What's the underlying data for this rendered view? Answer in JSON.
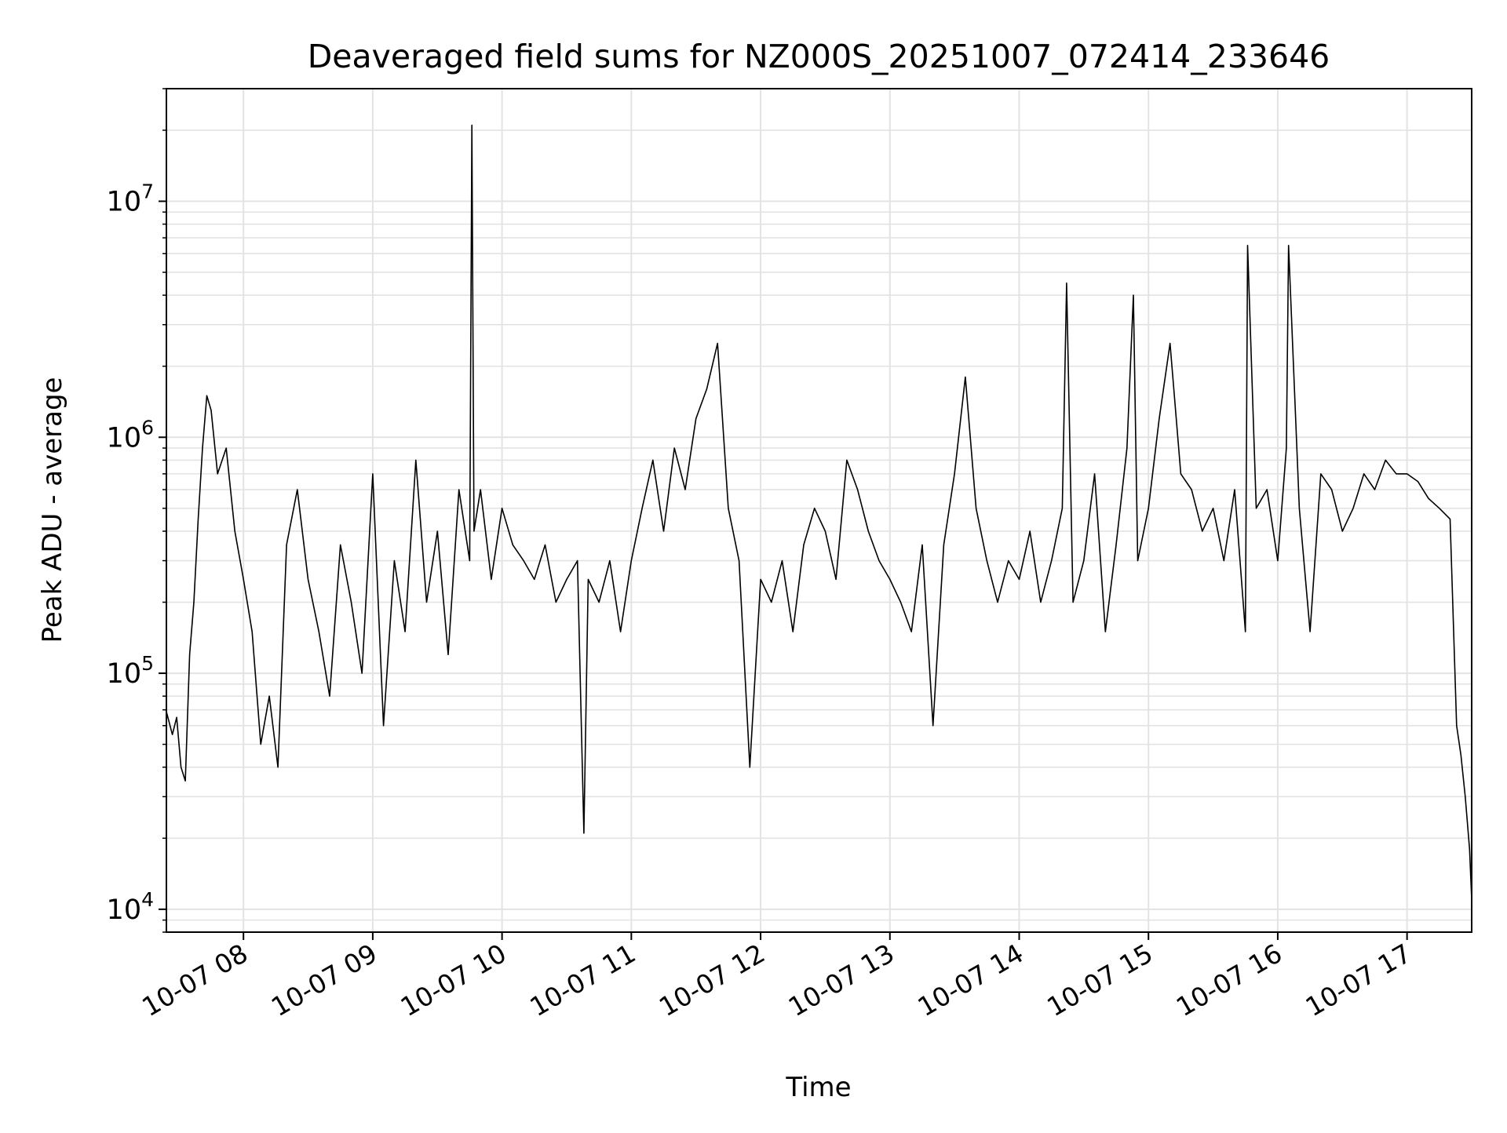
{
  "chart_data": {
    "type": "line",
    "title": "Deaveraged field sums for NZ000S_20251007_072414_233646",
    "xlabel": "Time",
    "ylabel": "Peak ADU - average",
    "yscale": "log",
    "ylim": [
      8000,
      30000000
    ],
    "xlim": [
      "2025-10-07 07:24:14",
      "2025-10-07 17:30:00"
    ],
    "grid": true,
    "legend": false,
    "line_color": "#000000",
    "x_ticks": [
      {
        "value": "2025-10-07 08:00",
        "label": "10-07 08"
      },
      {
        "value": "2025-10-07 09:00",
        "label": "10-07 09"
      },
      {
        "value": "2025-10-07 10:00",
        "label": "10-07 10"
      },
      {
        "value": "2025-10-07 11:00",
        "label": "10-07 11"
      },
      {
        "value": "2025-10-07 12:00",
        "label": "10-07 12"
      },
      {
        "value": "2025-10-07 13:00",
        "label": "10-07 13"
      },
      {
        "value": "2025-10-07 14:00",
        "label": "10-07 14"
      },
      {
        "value": "2025-10-07 15:00",
        "label": "10-07 15"
      },
      {
        "value": "2025-10-07 16:00",
        "label": "10-07 16"
      },
      {
        "value": "2025-10-07 17:00",
        "label": "10-07 17"
      }
    ],
    "y_ticks": [
      {
        "value": 10000,
        "base": "10",
        "exp": "4"
      },
      {
        "value": 100000,
        "base": "10",
        "exp": "5"
      },
      {
        "value": 1000000,
        "base": "10",
        "exp": "6"
      },
      {
        "value": 10000000,
        "base": "10",
        "exp": "7"
      }
    ],
    "series": [
      {
        "x": [
          "2025-10-07 07:24",
          "2025-10-07 07:27",
          "2025-10-07 07:29",
          "2025-10-07 07:31",
          "2025-10-07 07:33",
          "2025-10-07 07:35",
          "2025-10-07 07:37",
          "2025-10-07 07:39",
          "2025-10-07 07:41",
          "2025-10-07 07:43",
          "2025-10-07 07:45",
          "2025-10-07 07:48",
          "2025-10-07 07:52",
          "2025-10-07 07:56",
          "2025-10-07 08:00",
          "2025-10-07 08:04",
          "2025-10-07 08:08",
          "2025-10-07 08:12",
          "2025-10-07 08:16",
          "2025-10-07 08:20",
          "2025-10-07 08:25",
          "2025-10-07 08:30",
          "2025-10-07 08:35",
          "2025-10-07 08:40",
          "2025-10-07 08:45",
          "2025-10-07 08:50",
          "2025-10-07 08:55",
          "2025-10-07 09:00",
          "2025-10-07 09:05",
          "2025-10-07 09:10",
          "2025-10-07 09:15",
          "2025-10-07 09:20",
          "2025-10-07 09:25",
          "2025-10-07 09:30",
          "2025-10-07 09:35",
          "2025-10-07 09:40",
          "2025-10-07 09:45",
          "2025-10-07 09:46",
          "2025-10-07 09:47",
          "2025-10-07 09:50",
          "2025-10-07 09:55",
          "2025-10-07 10:00",
          "2025-10-07 10:05",
          "2025-10-07 10:10",
          "2025-10-07 10:15",
          "2025-10-07 10:20",
          "2025-10-07 10:25",
          "2025-10-07 10:30",
          "2025-10-07 10:35",
          "2025-10-07 10:38",
          "2025-10-07 10:40",
          "2025-10-07 10:45",
          "2025-10-07 10:50",
          "2025-10-07 10:55",
          "2025-10-07 11:00",
          "2025-10-07 11:05",
          "2025-10-07 11:10",
          "2025-10-07 11:15",
          "2025-10-07 11:20",
          "2025-10-07 11:25",
          "2025-10-07 11:30",
          "2025-10-07 11:35",
          "2025-10-07 11:40",
          "2025-10-07 11:45",
          "2025-10-07 11:50",
          "2025-10-07 11:55",
          "2025-10-07 12:00",
          "2025-10-07 12:05",
          "2025-10-07 12:10",
          "2025-10-07 12:15",
          "2025-10-07 12:20",
          "2025-10-07 12:25",
          "2025-10-07 12:30",
          "2025-10-07 12:35",
          "2025-10-07 12:40",
          "2025-10-07 12:45",
          "2025-10-07 12:50",
          "2025-10-07 12:55",
          "2025-10-07 13:00",
          "2025-10-07 13:05",
          "2025-10-07 13:10",
          "2025-10-07 13:15",
          "2025-10-07 13:20",
          "2025-10-07 13:25",
          "2025-10-07 13:30",
          "2025-10-07 13:35",
          "2025-10-07 13:40",
          "2025-10-07 13:45",
          "2025-10-07 13:50",
          "2025-10-07 13:55",
          "2025-10-07 14:00",
          "2025-10-07 14:05",
          "2025-10-07 14:10",
          "2025-10-07 14:15",
          "2025-10-07 14:20",
          "2025-10-07 14:22",
          "2025-10-07 14:25",
          "2025-10-07 14:30",
          "2025-10-07 14:35",
          "2025-10-07 14:40",
          "2025-10-07 14:45",
          "2025-10-07 14:50",
          "2025-10-07 14:53",
          "2025-10-07 14:55",
          "2025-10-07 15:00",
          "2025-10-07 15:05",
          "2025-10-07 15:10",
          "2025-10-07 15:15",
          "2025-10-07 15:20",
          "2025-10-07 15:25",
          "2025-10-07 15:30",
          "2025-10-07 15:35",
          "2025-10-07 15:40",
          "2025-10-07 15:45",
          "2025-10-07 15:46",
          "2025-10-07 15:50",
          "2025-10-07 15:55",
          "2025-10-07 16:00",
          "2025-10-07 16:04",
          "2025-10-07 16:05",
          "2025-10-07 16:10",
          "2025-10-07 16:15",
          "2025-10-07 16:20",
          "2025-10-07 16:25",
          "2025-10-07 16:30",
          "2025-10-07 16:35",
          "2025-10-07 16:40",
          "2025-10-07 16:45",
          "2025-10-07 16:50",
          "2025-10-07 16:55",
          "2025-10-07 17:00",
          "2025-10-07 17:05",
          "2025-10-07 17:10",
          "2025-10-07 17:15",
          "2025-10-07 17:20",
          "2025-10-07 17:23",
          "2025-10-07 17:25",
          "2025-10-07 17:27",
          "2025-10-07 17:29",
          "2025-10-07 17:30"
        ],
        "y": [
          70000,
          55000,
          65000,
          40000,
          35000,
          120000,
          200000,
          450000,
          900000,
          1500000,
          1300000,
          700000,
          900000,
          400000,
          250000,
          150000,
          50000,
          80000,
          40000,
          350000,
          600000,
          250000,
          150000,
          80000,
          350000,
          200000,
          100000,
          700000,
          60000,
          300000,
          150000,
          800000,
          200000,
          400000,
          120000,
          600000,
          300000,
          21000000,
          400000,
          600000,
          250000,
          500000,
          350000,
          300000,
          250000,
          350000,
          200000,
          250000,
          300000,
          21000,
          250000,
          200000,
          300000,
          150000,
          300000,
          500000,
          800000,
          400000,
          900000,
          600000,
          1200000,
          1600000,
          2500000,
          500000,
          300000,
          40000,
          250000,
          200000,
          300000,
          150000,
          350000,
          500000,
          400000,
          250000,
          800000,
          600000,
          400000,
          300000,
          250000,
          200000,
          150000,
          350000,
          60000,
          350000,
          700000,
          1800000,
          500000,
          300000,
          200000,
          300000,
          250000,
          400000,
          200000,
          300000,
          500000,
          4500000,
          200000,
          300000,
          700000,
          150000,
          350000,
          900000,
          4000000,
          300000,
          500000,
          1200000,
          2500000,
          700000,
          600000,
          400000,
          500000,
          300000,
          600000,
          150000,
          6500000,
          500000,
          600000,
          300000,
          900000,
          6500000,
          500000,
          150000,
          700000,
          600000,
          400000,
          500000,
          700000,
          600000,
          800000,
          700000,
          700000,
          650000,
          550000,
          500000,
          450000,
          60000,
          45000,
          30000,
          18000,
          11000
        ]
      }
    ]
  }
}
